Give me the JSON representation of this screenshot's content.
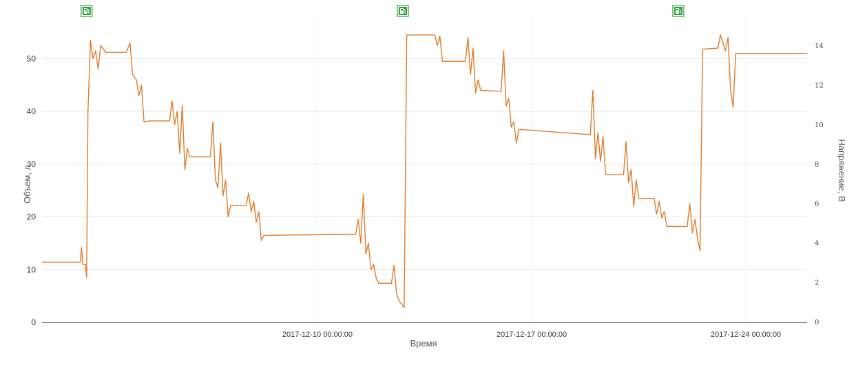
{
  "chart_data": {
    "type": "line",
    "xlabel": "Время",
    "ylabel_left": "Объем, л",
    "ylabel_right": "Напряжение, В",
    "ylim_left": [
      0,
      58
    ],
    "ylim_right": [
      0,
      15.5
    ],
    "yticks_left": [
      0,
      10,
      20,
      30,
      40,
      50
    ],
    "yticks_right": [
      0,
      2,
      4,
      6,
      8,
      10,
      12,
      14
    ],
    "x_range": [
      "2017-12-01 00:00:00",
      "2017-12-26 00:00:00"
    ],
    "x_ticks": [
      "2017-12-10 00:00:00",
      "2017-12-17 00:00:00",
      "2017-12-24 00:00:00"
    ],
    "grid": true,
    "colors": {
      "line": "#e07b2a",
      "marker": "#2e9e3a",
      "axis": "#666666"
    },
    "markers": {
      "icon": "fuel-pump-icon",
      "times": [
        "2017-12-02 11:00:00",
        "2017-12-12 19:00:00",
        "2017-12-21 19:00:00"
      ]
    },
    "series": [
      {
        "points": [
          [
            "2017-12-01 00:00:00",
            11.4
          ],
          [
            "2017-12-02 06:00:00",
            11.4
          ],
          [
            "2017-12-02 07:00:00",
            14.2
          ],
          [
            "2017-12-02 08:00:00",
            11.0
          ],
          [
            "2017-12-02 10:00:00",
            11.0
          ],
          [
            "2017-12-02 11:00:00",
            8.5
          ],
          [
            "2017-12-02 12:00:00",
            40.0
          ],
          [
            "2017-12-02 14:00:00",
            53.5
          ],
          [
            "2017-12-02 16:00:00",
            50.0
          ],
          [
            "2017-12-02 18:00:00",
            51.5
          ],
          [
            "2017-12-02 20:00:00",
            48.0
          ],
          [
            "2017-12-02 22:00:00",
            52.5
          ],
          [
            "2017-12-03 02:00:00",
            51.2
          ],
          [
            "2017-12-03 18:00:00",
            51.2
          ],
          [
            "2017-12-03 21:00:00",
            53.0
          ],
          [
            "2017-12-03 23:00:00",
            47.0
          ],
          [
            "2017-12-04 02:00:00",
            46.0
          ],
          [
            "2017-12-04 04:00:00",
            43.0
          ],
          [
            "2017-12-04 06:00:00",
            45.0
          ],
          [
            "2017-12-04 08:00:00",
            38.0
          ],
          [
            "2017-12-04 12:00:00",
            38.2
          ],
          [
            "2017-12-05 04:00:00",
            38.2
          ],
          [
            "2017-12-05 06:00:00",
            42.0
          ],
          [
            "2017-12-05 08:00:00",
            37.5
          ],
          [
            "2017-12-05 10:00:00",
            40.0
          ],
          [
            "2017-12-05 12:00:00",
            32.0
          ],
          [
            "2017-12-05 14:00:00",
            41.2
          ],
          [
            "2017-12-05 16:00:00",
            29.0
          ],
          [
            "2017-12-05 18:00:00",
            33.0
          ],
          [
            "2017-12-05 20:00:00",
            31.4
          ],
          [
            "2017-12-06 12:00:00",
            31.4
          ],
          [
            "2017-12-06 14:00:00",
            38.0
          ],
          [
            "2017-12-06 16:00:00",
            27.0
          ],
          [
            "2017-12-06 18:00:00",
            25.5
          ],
          [
            "2017-12-06 20:00:00",
            34.0
          ],
          [
            "2017-12-06 22:00:00",
            24.0
          ],
          [
            "2017-12-07 00:00:00",
            27.0
          ],
          [
            "2017-12-07 02:00:00",
            20.0
          ],
          [
            "2017-12-07 04:00:00",
            22.2
          ],
          [
            "2017-12-07 16:00:00",
            22.2
          ],
          [
            "2017-12-07 18:00:00",
            24.5
          ],
          [
            "2017-12-07 20:00:00",
            21.0
          ],
          [
            "2017-12-07 22:00:00",
            23.0
          ],
          [
            "2017-12-08 00:00:00",
            19.0
          ],
          [
            "2017-12-08 02:00:00",
            21.0
          ],
          [
            "2017-12-08 04:00:00",
            15.5
          ],
          [
            "2017-12-08 06:00:00",
            16.5
          ],
          [
            "2017-12-11 06:00:00",
            16.7
          ],
          [
            "2017-12-11 08:00:00",
            19.5
          ],
          [
            "2017-12-11 10:00:00",
            15.0
          ],
          [
            "2017-12-11 12:00:00",
            24.3
          ],
          [
            "2017-12-11 14:00:00",
            13.0
          ],
          [
            "2017-12-11 16:00:00",
            15.0
          ],
          [
            "2017-12-11 18:00:00",
            10.0
          ],
          [
            "2017-12-11 20:00:00",
            11.0
          ],
          [
            "2017-12-11 22:00:00",
            8.5
          ],
          [
            "2017-12-12 00:00:00",
            7.4
          ],
          [
            "2017-12-12 10:00:00",
            7.4
          ],
          [
            "2017-12-12 12:00:00",
            10.8
          ],
          [
            "2017-12-12 14:00:00",
            5.5
          ],
          [
            "2017-12-12 16:00:00",
            4.0
          ],
          [
            "2017-12-12 18:00:00",
            3.5
          ],
          [
            "2017-12-12 20:00:00",
            2.8
          ],
          [
            "2017-12-12 22:00:00",
            54.5
          ],
          [
            "2017-12-13 20:00:00",
            54.5
          ],
          [
            "2017-12-13 22:00:00",
            52.5
          ],
          [
            "2017-12-14 00:00:00",
            54.3
          ],
          [
            "2017-12-14 02:00:00",
            49.5
          ],
          [
            "2017-12-14 20:00:00",
            49.5
          ],
          [
            "2017-12-14 22:00:00",
            54.0
          ],
          [
            "2017-12-15 00:00:00",
            47.0
          ],
          [
            "2017-12-15 02:00:00",
            52.0
          ],
          [
            "2017-12-15 04:00:00",
            43.5
          ],
          [
            "2017-12-15 06:00:00",
            46.0
          ],
          [
            "2017-12-15 08:00:00",
            44.0
          ],
          [
            "2017-12-16 00:00:00",
            43.8
          ],
          [
            "2017-12-16 02:00:00",
            51.5
          ],
          [
            "2017-12-16 04:00:00",
            41.0
          ],
          [
            "2017-12-16 06:00:00",
            42.5
          ],
          [
            "2017-12-16 08:00:00",
            37.0
          ],
          [
            "2017-12-16 10:00:00",
            38.0
          ],
          [
            "2017-12-16 12:00:00",
            34.0
          ],
          [
            "2017-12-16 14:00:00",
            36.6
          ],
          [
            "2017-12-18 22:00:00",
            35.6
          ],
          [
            "2017-12-19 00:00:00",
            44.0
          ],
          [
            "2017-12-19 02:00:00",
            31.0
          ],
          [
            "2017-12-19 04:00:00",
            36.0
          ],
          [
            "2017-12-19 06:00:00",
            30.5
          ],
          [
            "2017-12-19 08:00:00",
            35.2
          ],
          [
            "2017-12-19 10:00:00",
            28.0
          ],
          [
            "2017-12-20 00:00:00",
            28.0
          ],
          [
            "2017-12-20 02:00:00",
            34.3
          ],
          [
            "2017-12-20 04:00:00",
            26.5
          ],
          [
            "2017-12-20 06:00:00",
            29.0
          ],
          [
            "2017-12-20 08:00:00",
            22.0
          ],
          [
            "2017-12-20 10:00:00",
            27.0
          ],
          [
            "2017-12-20 12:00:00",
            23.5
          ],
          [
            "2017-12-21 00:00:00",
            23.5
          ],
          [
            "2017-12-21 02:00:00",
            20.5
          ],
          [
            "2017-12-21 04:00:00",
            23.0
          ],
          [
            "2017-12-21 06:00:00",
            19.8
          ],
          [
            "2017-12-21 08:00:00",
            21.0
          ],
          [
            "2017-12-21 10:00:00",
            18.2
          ],
          [
            "2017-12-22 02:00:00",
            18.2
          ],
          [
            "2017-12-22 04:00:00",
            22.5
          ],
          [
            "2017-12-22 06:00:00",
            17.0
          ],
          [
            "2017-12-22 08:00:00",
            19.5
          ],
          [
            "2017-12-22 10:00:00",
            16.0
          ],
          [
            "2017-12-22 12:00:00",
            13.6
          ],
          [
            "2017-12-22 14:00:00",
            51.8
          ],
          [
            "2017-12-23 02:00:00",
            52.0
          ],
          [
            "2017-12-23 04:00:00",
            54.5
          ],
          [
            "2017-12-23 06:00:00",
            53.0
          ],
          [
            "2017-12-23 08:00:00",
            51.5
          ],
          [
            "2017-12-23 10:00:00",
            54.0
          ],
          [
            "2017-12-23 12:00:00",
            44.0
          ],
          [
            "2017-12-23 14:00:00",
            40.8
          ],
          [
            "2017-12-23 16:00:00",
            51.0
          ],
          [
            "2017-12-26 00:00:00",
            51.0
          ]
        ]
      }
    ]
  }
}
